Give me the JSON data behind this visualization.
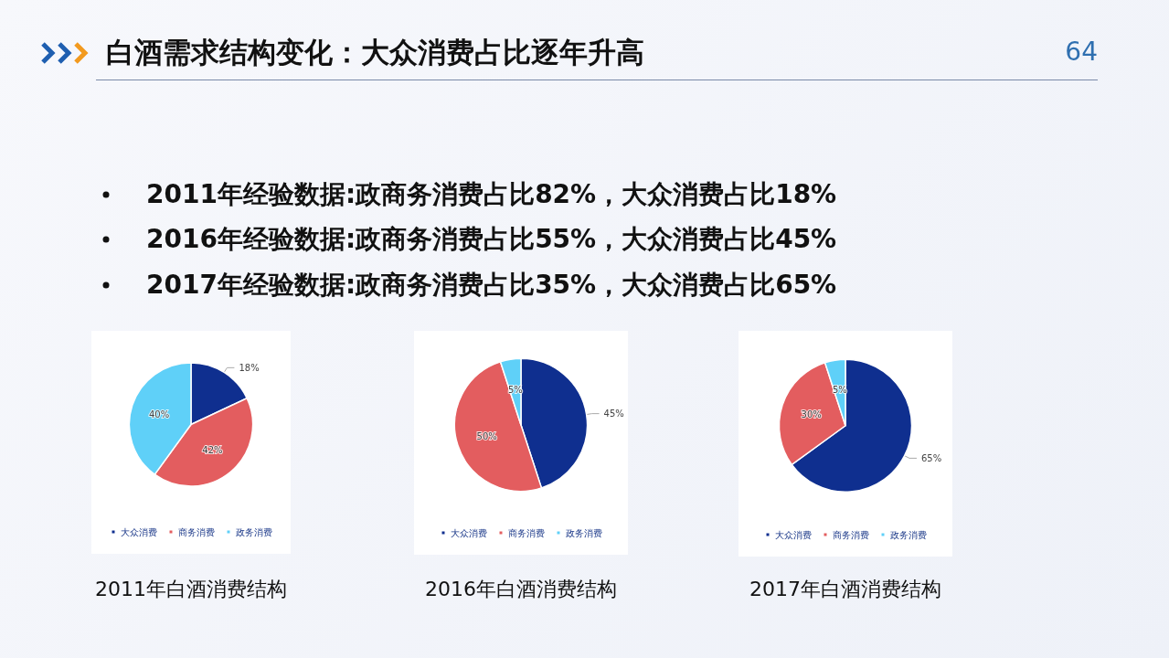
{
  "chart_data": [
    {
      "type": "other",
      "title": "白酒需求结构变化：大众消费占比逐年升高",
      "annotations": [
        "2011年经验数据:政商务消费占比82%，大众消费占比18%",
        "2016年经验数据:政商务消费占比55%，大众消费占比45%",
        "2017年经验数据:政商务消费占比35%，大众消费占比65%",
        "64"
      ]
    },
    {
      "type": "pie",
      "title": "2011年白酒消费结构",
      "categories": [
        "大众消费",
        "商务消费",
        "政务消费"
      ],
      "values": [
        18,
        42,
        40
      ],
      "value_labels": [
        "18%",
        "42%",
        "40%"
      ],
      "colors": [
        "#0f2f8f",
        "#e35d5f",
        "#5fd0f8"
      ],
      "legend": "bottom"
    },
    {
      "type": "pie",
      "title": "2016年白酒消费结构",
      "categories": [
        "大众消费",
        "商务消费",
        "政务消费"
      ],
      "values": [
        45,
        50,
        5
      ],
      "value_labels": [
        "45%",
        "50%",
        "5%"
      ],
      "colors": [
        "#0f2f8f",
        "#e35d5f",
        "#5fd0f8"
      ],
      "legend": "bottom"
    },
    {
      "type": "pie",
      "title": "2017年白酒消费结构",
      "categories": [
        "大众消费",
        "商务消费",
        "政务消费"
      ],
      "values": [
        65,
        30,
        5
      ],
      "value_labels": [
        "65%",
        "30%",
        "5%"
      ],
      "colors": [
        "#0f2f8f",
        "#e35d5f",
        "#5fd0f8"
      ],
      "legend": "bottom"
    }
  ]
}
